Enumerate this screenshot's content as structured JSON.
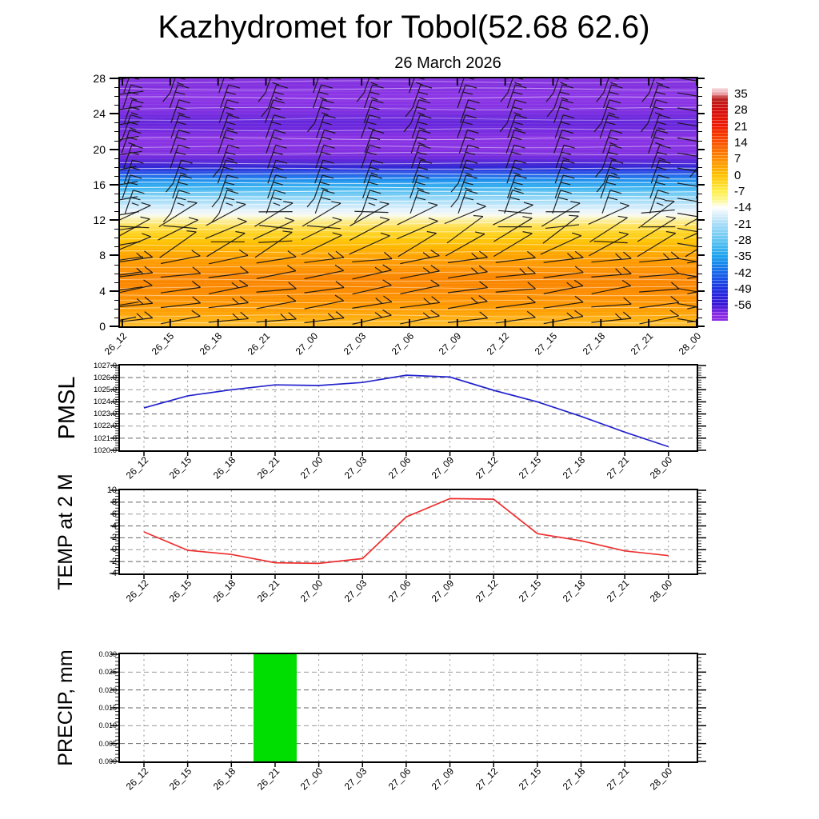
{
  "title": "Kazhydromet for Tobol(52.68 62.6)",
  "date_subtitle": "26 March 2026",
  "time_labels": [
    "26_12",
    "26_15",
    "26_18",
    "26_21",
    "27_00",
    "27_03",
    "27_06",
    "27_09",
    "27_12",
    "27_15",
    "27_18",
    "27_21",
    "28_00"
  ],
  "colors": {
    "pmsl_line": "#2323cd",
    "temp_line": "#ee3030",
    "precip_bar": "#00dd00",
    "barb": "#141414",
    "frame": "#000000",
    "grid_dark": "#666666",
    "grid_light": "#9a9a9a"
  },
  "chart_data": [
    {
      "type": "heatmap",
      "name": "vertical temperature/wind profile",
      "ylim": [
        0,
        28
      ],
      "y_tick_values": [
        0,
        4,
        8,
        12,
        16,
        20,
        24,
        28
      ],
      "y_tick_labels": [
        "0",
        "4",
        "8",
        "12",
        "16",
        "20",
        "24",
        "28"
      ],
      "x_categories": [
        "26_12",
        "26_15",
        "26_18",
        "26_21",
        "27_00",
        "27_03",
        "27_06",
        "27_09",
        "27_12",
        "27_15",
        "27_18",
        "27_21",
        "28_00"
      ],
      "legend_position": "right colorbar",
      "colorbar_labels": [
        "35",
        "28",
        "21",
        "14",
        "7",
        "0",
        "-7",
        "-14",
        "-21",
        "-28",
        "-35",
        "-42",
        "-49",
        "-56"
      ],
      "colorbar_stops": [
        [
          37.4,
          "#f6dbe2"
        ],
        [
          35,
          "#eda3ab"
        ],
        [
          33,
          "#b92020"
        ],
        [
          28,
          "#d40d0d"
        ],
        [
          21,
          "#ef1c02"
        ],
        [
          14,
          "#fa5200"
        ],
        [
          7,
          "#ff8c00"
        ],
        [
          0,
          "#ffc100"
        ],
        [
          -7,
          "#ffef48"
        ],
        [
          -11,
          "#fcf795"
        ],
        [
          -14,
          "#ffffff"
        ],
        [
          -17,
          "#ddf0fa"
        ],
        [
          -21,
          "#aaddf7"
        ],
        [
          -28,
          "#64c6f2"
        ],
        [
          -35,
          "#1ba2ee"
        ],
        [
          -42,
          "#1767e9"
        ],
        [
          -49,
          "#1c31e0"
        ],
        [
          -56,
          "#3c15d7"
        ],
        [
          -60,
          "#8c2ae4"
        ]
      ],
      "fill_gradient_by_height": [
        [
          0,
          "#ffc133"
        ],
        [
          0.8,
          "#ffb012"
        ],
        [
          1.8,
          "#ff9f03"
        ],
        [
          3,
          "#ff9300"
        ],
        [
          4.5,
          "#fb8800"
        ],
        [
          5.5,
          "#fa8600"
        ],
        [
          6.5,
          "#ff9300"
        ],
        [
          8,
          "#ffa400"
        ],
        [
          9,
          "#ffb800"
        ],
        [
          10,
          "#ffcb0c"
        ],
        [
          10.8,
          "#ffd834"
        ],
        [
          11.5,
          "#ffe566"
        ],
        [
          12,
          "#f9efa5"
        ],
        [
          12.5,
          "#fbfbea"
        ],
        [
          12.9,
          "#ecf5fb"
        ],
        [
          13.5,
          "#cdeafa"
        ],
        [
          14.2,
          "#a5ddf8"
        ],
        [
          15,
          "#6cc8f3"
        ],
        [
          15.8,
          "#35aff0"
        ],
        [
          16.5,
          "#1d8fee"
        ],
        [
          17.1,
          "#2767ea"
        ],
        [
          17.7,
          "#2f3ade"
        ],
        [
          18.1,
          "#3522d4"
        ],
        [
          18.6,
          "#5526d8"
        ],
        [
          19.3,
          "#7c2edf"
        ],
        [
          20.2,
          "#8833e3"
        ],
        [
          21.3,
          "#8a34e4"
        ],
        [
          22.3,
          "#7029de"
        ],
        [
          23.2,
          "#6527dc"
        ],
        [
          24.2,
          "#7e30e1"
        ],
        [
          25.2,
          "#8a35e5"
        ],
        [
          26.2,
          "#8d37e6"
        ],
        [
          27,
          "#8331e0"
        ],
        [
          28,
          "#8834e2"
        ]
      ],
      "white_contours": [
        [
          0.5,
          0.5
        ],
        [
          1.2,
          0.45
        ],
        [
          2,
          0.5
        ],
        [
          2.8,
          0.45
        ],
        [
          3.6,
          0.5
        ],
        [
          4.4,
          0.45
        ],
        [
          5.2,
          0.5
        ],
        [
          6,
          0.5
        ],
        [
          6.8,
          0.45
        ],
        [
          7.6,
          0.5
        ],
        [
          8.4,
          0.5
        ],
        [
          9.2,
          0.45
        ],
        [
          10,
          0.5
        ],
        [
          10.8,
          0.5
        ],
        [
          11.6,
          0.55
        ],
        [
          13.2,
          0.8
        ],
        [
          13.7,
          0.8
        ],
        [
          14.2,
          0.85
        ],
        [
          14.7,
          0.8
        ],
        [
          15.2,
          0.85
        ],
        [
          15.7,
          0.8
        ],
        [
          16.2,
          0.8
        ],
        [
          16.7,
          0.75
        ],
        [
          17.2,
          0.7
        ],
        [
          17.8,
          0.65
        ],
        [
          18.4,
          0.6
        ],
        [
          19.5,
          0.5
        ],
        [
          20.3,
          0.45
        ],
        [
          21.2,
          0.5
        ],
        [
          22.2,
          0.45
        ],
        [
          23.4,
          0.4
        ],
        [
          24.6,
          0.45
        ],
        [
          25.8,
          0.5
        ],
        [
          26.8,
          0.45
        ],
        [
          27.6,
          0.4
        ]
      ],
      "wind_barb_rows_h": [
        0.6,
        2.3,
        4.0,
        5.7,
        7.4,
        9.1,
        10.8,
        12.5,
        14.2,
        15.9,
        17.6,
        19.3,
        21.0,
        22.7,
        24.4,
        26.1,
        27.8
      ]
    },
    {
      "type": "line",
      "name": "PMSL",
      "ylim": [
        1020,
        1027
      ],
      "y_tick_values": [
        1020,
        1021,
        1022,
        1023,
        1024,
        1025,
        1026,
        1027
      ],
      "y_tick_labels": [
        "1020.0",
        "1021.0",
        "1022.0",
        "1023.0",
        "1024.0",
        "1025.0",
        "1026.0",
        "1027.0"
      ],
      "x": [
        "26_12",
        "26_15",
        "26_18",
        "26_21",
        "27_00",
        "27_03",
        "27_06",
        "27_09",
        "27_12",
        "27_15",
        "27_18",
        "27_21",
        "28_00"
      ],
      "values": [
        1023.5,
        1024.5,
        1025.0,
        1025.4,
        1025.35,
        1025.6,
        1026.2,
        1026.05,
        1024.95,
        1024.0,
        1022.8,
        1021.5,
        1020.3
      ]
    },
    {
      "type": "line",
      "name": "TEMP at 2 M",
      "ylim": [
        -4,
        10
      ],
      "y_tick_values": [
        -4,
        -2,
        0,
        2,
        4,
        6,
        8,
        10
      ],
      "y_tick_labels": [
        "-4",
        "-2",
        "0",
        "2",
        "4",
        "6",
        "8",
        "10"
      ],
      "x": [
        "26_12",
        "26_15",
        "26_18",
        "26_21",
        "27_00",
        "27_03",
        "27_06",
        "27_09",
        "27_12",
        "27_15",
        "27_18",
        "27_21",
        "28_00"
      ],
      "values": [
        3.0,
        -0.1,
        -0.8,
        -2.2,
        -2.3,
        -1.5,
        5.5,
        8.6,
        8.5,
        2.7,
        1.5,
        -0.2,
        -1.0
      ]
    },
    {
      "type": "bar",
      "name": "PRECIP, mm",
      "ylim": [
        0,
        0.03
      ],
      "y_tick_values": [
        0,
        0.005,
        0.01,
        0.015,
        0.02,
        0.025,
        0.03
      ],
      "y_tick_labels": [
        "0.000",
        "0.005",
        "0.010",
        "0.015",
        "0.020",
        "0.025",
        "0.030"
      ],
      "x": [
        "26_12",
        "26_15",
        "26_18",
        "26_21",
        "27_00",
        "27_03",
        "27_06",
        "27_09",
        "27_12",
        "27_15",
        "27_18",
        "27_21",
        "28_00"
      ],
      "values": [
        0,
        0,
        0,
        0.03,
        0,
        0,
        0,
        0,
        0,
        0,
        0,
        0,
        0
      ]
    }
  ]
}
